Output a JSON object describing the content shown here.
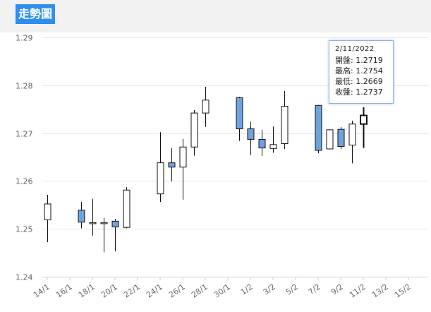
{
  "header": {
    "title": "走勢圖"
  },
  "tooltip": {
    "date": "2/11/2022",
    "open_label": "開盤:",
    "open": "1.2719",
    "high_label": "最高:",
    "high": "1.2754",
    "low_label": "最低:",
    "low": "1.2669",
    "close_label": "收盤:",
    "close": "1.2737"
  },
  "colors": {
    "down": "#6fa3de",
    "up": "#ffffff",
    "grid": "#e6e6e6",
    "accent": "#2d8ef0"
  },
  "chart_data": {
    "type": "candlestick",
    "ylim": [
      1.24,
      1.29
    ],
    "yticks": [
      "1.24",
      "1.25",
      "1.26",
      "1.27",
      "1.28",
      "1.29"
    ],
    "xticks": [
      "14/1",
      "16/1",
      "18/1",
      "20/1",
      "22/1",
      "24/1",
      "26/1",
      "28/1",
      "30/1",
      "1/2",
      "3/2",
      "5/2",
      "7/2",
      "9/2",
      "11/2",
      "13/2",
      "15/2"
    ],
    "candles": [
      {
        "date": "14/1",
        "open": 1.2519,
        "high": 1.2571,
        "low": 1.2472,
        "close": 1.2552
      },
      {
        "date": "17/1",
        "open": 1.2539,
        "high": 1.2556,
        "low": 1.2501,
        "close": 1.2514
      },
      {
        "date": "18/1",
        "open": 1.2513,
        "high": 1.2563,
        "low": 1.2486,
        "close": 1.2513
      },
      {
        "date": "19/1",
        "open": 1.2513,
        "high": 1.2523,
        "low": 1.2451,
        "close": 1.2513
      },
      {
        "date": "20/1",
        "open": 1.2516,
        "high": 1.2521,
        "low": 1.2453,
        "close": 1.2504
      },
      {
        "date": "21/1",
        "open": 1.2503,
        "high": 1.2587,
        "low": 1.2501,
        "close": 1.2581
      },
      {
        "date": "24/1",
        "open": 1.2573,
        "high": 1.2702,
        "low": 1.2556,
        "close": 1.2638
      },
      {
        "date": "25/1",
        "open": 1.2638,
        "high": 1.2669,
        "low": 1.2599,
        "close": 1.2629
      },
      {
        "date": "26/1",
        "open": 1.2629,
        "high": 1.2688,
        "low": 1.2561,
        "close": 1.2671
      },
      {
        "date": "27/1",
        "open": 1.2671,
        "high": 1.2748,
        "low": 1.2653,
        "close": 1.2742
      },
      {
        "date": "28/1",
        "open": 1.2742,
        "high": 1.2797,
        "low": 1.2713,
        "close": 1.2769
      },
      {
        "date": "31/1",
        "open": 1.2774,
        "high": 1.2776,
        "low": 1.2684,
        "close": 1.2709
      },
      {
        "date": "1/2",
        "open": 1.2709,
        "high": 1.2724,
        "low": 1.2654,
        "close": 1.2687
      },
      {
        "date": "2/2",
        "open": 1.2687,
        "high": 1.2707,
        "low": 1.2652,
        "close": 1.2669
      },
      {
        "date": "3/2",
        "open": 1.2668,
        "high": 1.2714,
        "low": 1.2659,
        "close": 1.2676
      },
      {
        "date": "4/2",
        "open": 1.2678,
        "high": 1.2788,
        "low": 1.2667,
        "close": 1.2756
      },
      {
        "date": "7/2",
        "open": 1.2758,
        "high": 1.2759,
        "low": 1.2658,
        "close": 1.2664
      },
      {
        "date": "8/2",
        "open": 1.2667,
        "high": 1.2707,
        "low": 1.2666,
        "close": 1.2707
      },
      {
        "date": "9/2",
        "open": 1.2708,
        "high": 1.2713,
        "low": 1.2667,
        "close": 1.2672
      },
      {
        "date": "10/2",
        "open": 1.2675,
        "high": 1.2726,
        "low": 1.2637,
        "close": 1.2719
      },
      {
        "date": "11/2",
        "open": 1.2719,
        "high": 1.2754,
        "low": 1.2669,
        "close": 1.2737
      }
    ]
  }
}
